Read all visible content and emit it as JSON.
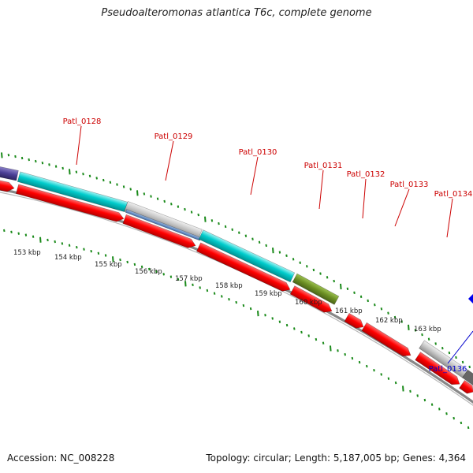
{
  "title": "Pseudoalteromonas atlantica T6c, complete genome",
  "footer": {
    "accession": "Accession: NC_008228",
    "topology": "Topology: circular; Length: 5,187,005 bp; Genes: 4,364"
  },
  "colors": {
    "gene_label_red": "#cc0000",
    "gene_label_blue": "#0000cc",
    "cds_red": "#ff0000",
    "cyan_feature": "#00cccc",
    "olive_feature": "#6b8e23",
    "gray_feature": "#bdbdbd",
    "tick_green": "#1a8a1a",
    "backbone": "#888888"
  },
  "gene_labels": [
    {
      "text": "Patl_0128",
      "color": "red"
    },
    {
      "text": "Patl_0129",
      "color": "red"
    },
    {
      "text": "Patl_0130",
      "color": "red"
    },
    {
      "text": "Patl_0131",
      "color": "red"
    },
    {
      "text": "Patl_0132",
      "color": "red"
    },
    {
      "text": "Patl_0133",
      "color": "red"
    },
    {
      "text": "Patl_0134",
      "color": "red"
    },
    {
      "text": "Patl_0136",
      "color": "blue"
    }
  ],
  "kbp_labels": [
    "153 kbp",
    "154 kbp",
    "155 kbp",
    "156 kbp",
    "157 kbp",
    "158 kbp",
    "159 kbp",
    "160 kbp",
    "161 kbp",
    "162 kbp",
    "163 kbp"
  ]
}
